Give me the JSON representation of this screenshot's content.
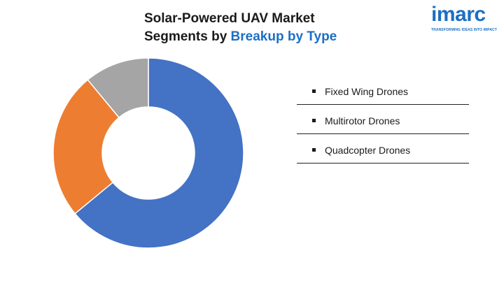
{
  "title": {
    "line1": "Solar-Powered UAV Market",
    "line2_prefix": "Segments by ",
    "line2_accent": "Breakup by Type"
  },
  "logo": {
    "word": "imarc",
    "tagline": "TRANSFORMING IDEAS INTO IMPACT"
  },
  "colors": {
    "accent": "#1c6fc4",
    "fixed_wing": "#4472c4",
    "multirotor": "#ed7d31",
    "quadcopter": "#a5a5a5"
  },
  "chart_data": {
    "type": "pie",
    "variant": "donut",
    "categories": [
      "Fixed Wing Drones",
      "Multirotor Drones",
      "Quadcopter Drones"
    ],
    "values": [
      64,
      25,
      11
    ],
    "legend_position": "right"
  }
}
